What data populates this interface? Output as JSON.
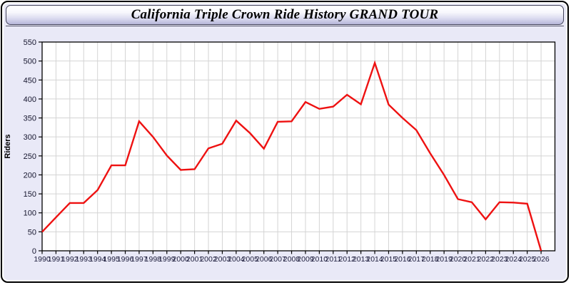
{
  "window": {
    "title": "California Triple Crown Ride History GRAND TOUR"
  },
  "colors": {
    "window_bg": "#e9e9f7",
    "window_border": "#000000",
    "titlebar_gradient_top": "#ffffff",
    "titlebar_gradient_bottom": "#b6b6d9",
    "plot_bg": "#ffffff",
    "grid_color": "#d4d4d4",
    "frame_color": "#000000",
    "tick_text_color": "#20203f",
    "series_color": "#ee1111"
  },
  "chart_data": {
    "type": "line",
    "title": "California Triple Crown Ride History GRAND TOUR",
    "xlabel": "",
    "ylabel": "Riders",
    "grid": true,
    "legend_position": "none",
    "xlim": [
      1990,
      2027
    ],
    "ylim": [
      0,
      550
    ],
    "y_tick_step": 50,
    "y_ticks": [
      0,
      50,
      100,
      150,
      200,
      250,
      300,
      350,
      400,
      450,
      500,
      550
    ],
    "x": [
      1990,
      1991,
      1992,
      1993,
      1994,
      1995,
      1996,
      1997,
      1998,
      1999,
      2000,
      2001,
      2002,
      2003,
      2004,
      2005,
      2006,
      2007,
      2008,
      2009,
      2010,
      2011,
      2012,
      2013,
      2014,
      2015,
      2016,
      2017,
      2018,
      2019,
      2020,
      2021,
      2022,
      2023,
      2024,
      2025,
      2026
    ],
    "series": [
      {
        "name": "Riders",
        "color": "#ee1111",
        "values": [
          50,
          88,
          126,
          126,
          160,
          225,
          225,
          341,
          300,
          251,
          213,
          215,
          270,
          282,
          343,
          310,
          269,
          340,
          341,
          392,
          374,
          380,
          411,
          386,
          495,
          385,
          350,
          318,
          257,
          200,
          136,
          128,
          83,
          128,
          127,
          124,
          0
        ]
      }
    ]
  }
}
